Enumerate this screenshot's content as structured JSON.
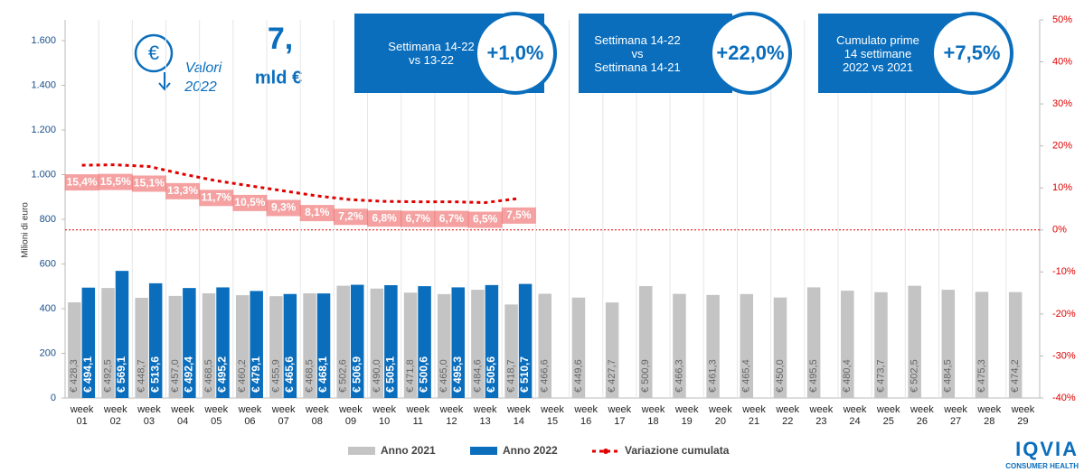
{
  "chart_data": {
    "type": "bar",
    "y_label": "Milioni di euro",
    "grid": "x",
    "legend": "bottom",
    "categories": [
      "week 01",
      "week 02",
      "week 03",
      "week 04",
      "week 05",
      "week 06",
      "week 07",
      "week 08",
      "week 09",
      "week 10",
      "week 11",
      "week 12",
      "week 13",
      "week 14",
      "week 15",
      "week 16",
      "week 17",
      "week 18",
      "week 19",
      "week 20",
      "week 21",
      "week 22",
      "week 23",
      "week 24",
      "week 25",
      "week 26",
      "week 27",
      "week 28",
      "week 29"
    ],
    "ylim": [
      0,
      1693
    ],
    "yticks": [
      0,
      200,
      400,
      600,
      800,
      {
        "value": 1000,
        "label": "1.000"
      },
      {
        "value": 1200,
        "label": "1.200"
      },
      {
        "value": 1400,
        "label": "1.400"
      },
      {
        "value": 1600,
        "label": "1.600"
      }
    ],
    "y2lim": [
      -40,
      50
    ],
    "y2ticks": [
      {
        "value": -40,
        "label": "-40%"
      },
      {
        "value": -30,
        "label": "-30%"
      },
      {
        "value": -20,
        "label": "-20%"
      },
      {
        "value": -10,
        "label": "-10%"
      },
      {
        "value": 0,
        "label": "0%"
      },
      {
        "value": 10,
        "label": "10%"
      },
      {
        "value": 20,
        "label": "20%"
      },
      {
        "value": 30,
        "label": "30%"
      },
      {
        "value": 40,
        "label": "40%"
      },
      {
        "value": 50,
        "label": "50%"
      }
    ],
    "series": [
      {
        "name": "Anno 2021",
        "type": "bar",
        "color": "#c4c4c4",
        "values": [
          428.3,
          492.5,
          448.7,
          457.0,
          468.5,
          460.2,
          455.9,
          468.5,
          502.6,
          490.0,
          471.8,
          465.0,
          484.6,
          418.7,
          466.6,
          449.6,
          427.7,
          500.9,
          466.3,
          461.3,
          465.4,
          450.0,
          495.5,
          480.4,
          473.7,
          502.5,
          484.5,
          475.3,
          474.2
        ],
        "value_labels": [
          "€ 428,3",
          "€ 492,5",
          "€ 448,7",
          "€ 457,0",
          "€ 468,5",
          "€ 460,2",
          "€ 455,9",
          "€ 468,5",
          "€ 502,6",
          "€ 490,0",
          "€ 471,8",
          "€ 465,0",
          "€ 484,6",
          "€ 418,7",
          "€ 466,6",
          "€ 449,6",
          "€ 427,7",
          "€ 500,9",
          "€ 466,3",
          "€ 461,3",
          "€ 465,4",
          "€ 450,0",
          "€ 495,5",
          "€ 480,4",
          "€ 473,7",
          "€ 502,5",
          "€ 484,5",
          "€ 475,3",
          "€ 474,2"
        ]
      },
      {
        "name": "Anno 2022",
        "type": "bar",
        "color": "#0a6ebd",
        "values": [
          494.1,
          569.1,
          513.6,
          492.4,
          495.2,
          479.1,
          465.6,
          468.1,
          506.9,
          505.1,
          500.6,
          495.3,
          505.6,
          510.7,
          null,
          null,
          null,
          null,
          null,
          null,
          null,
          null,
          null,
          null,
          null,
          null,
          null,
          null,
          null
        ],
        "value_labels": [
          "€ 494,1",
          "€ 569,1",
          "€ 513,6",
          "€ 492,4",
          "€ 495,2",
          "€ 479,1",
          "€ 465,6",
          "€ 468,1",
          "€ 506,9",
          "€ 505,1",
          "€ 500,6",
          "€ 495,3",
          "€ 505,6",
          "€ 510,7",
          null,
          null,
          null,
          null,
          null,
          null,
          null,
          null,
          null,
          null,
          null,
          null,
          null,
          null,
          null
        ]
      },
      {
        "name": "Variazione cumulata",
        "type": "line",
        "axis": "y2",
        "color": "#e00000",
        "values": [
          15.4,
          15.5,
          15.1,
          13.3,
          11.7,
          10.5,
          9.3,
          8.1,
          7.2,
          6.8,
          6.7,
          6.7,
          6.5,
          7.5,
          null,
          null,
          null,
          null,
          null,
          null,
          null,
          null,
          null,
          null,
          null,
          null,
          null,
          null,
          null
        ],
        "value_labels": [
          "15,4%",
          "15,5%",
          "15,1%",
          "13,3%",
          "11,7%",
          "10,5%",
          "9,3%",
          "8,1%",
          "7,2%",
          "6,8%",
          "6,7%",
          "6,7%",
          "6,5%",
          "7,5%",
          null,
          null,
          null,
          null,
          null,
          null,
          null,
          null,
          null,
          null,
          null,
          null,
          null,
          null,
          null
        ]
      }
    ],
    "headline": {
      "value": "7,",
      "unit": "mld €",
      "note": [
        "Valori",
        "2022"
      ]
    },
    "boxes": [
      {
        "lines": [
          "Settimana 14-22",
          "vs 13-22"
        ],
        "value": "+1,0%"
      },
      {
        "lines": [
          "Settimana 14-22",
          "vs",
          "Settimana 14-21"
        ],
        "value": "+22,0%"
      },
      {
        "lines": [
          "Cumulato prime",
          "14 settimane",
          "2022 vs 2021"
        ],
        "value": "+7,5%"
      }
    ],
    "logo": {
      "name": "IQVIA",
      "sub": "CONSUMER HEALTH"
    }
  }
}
